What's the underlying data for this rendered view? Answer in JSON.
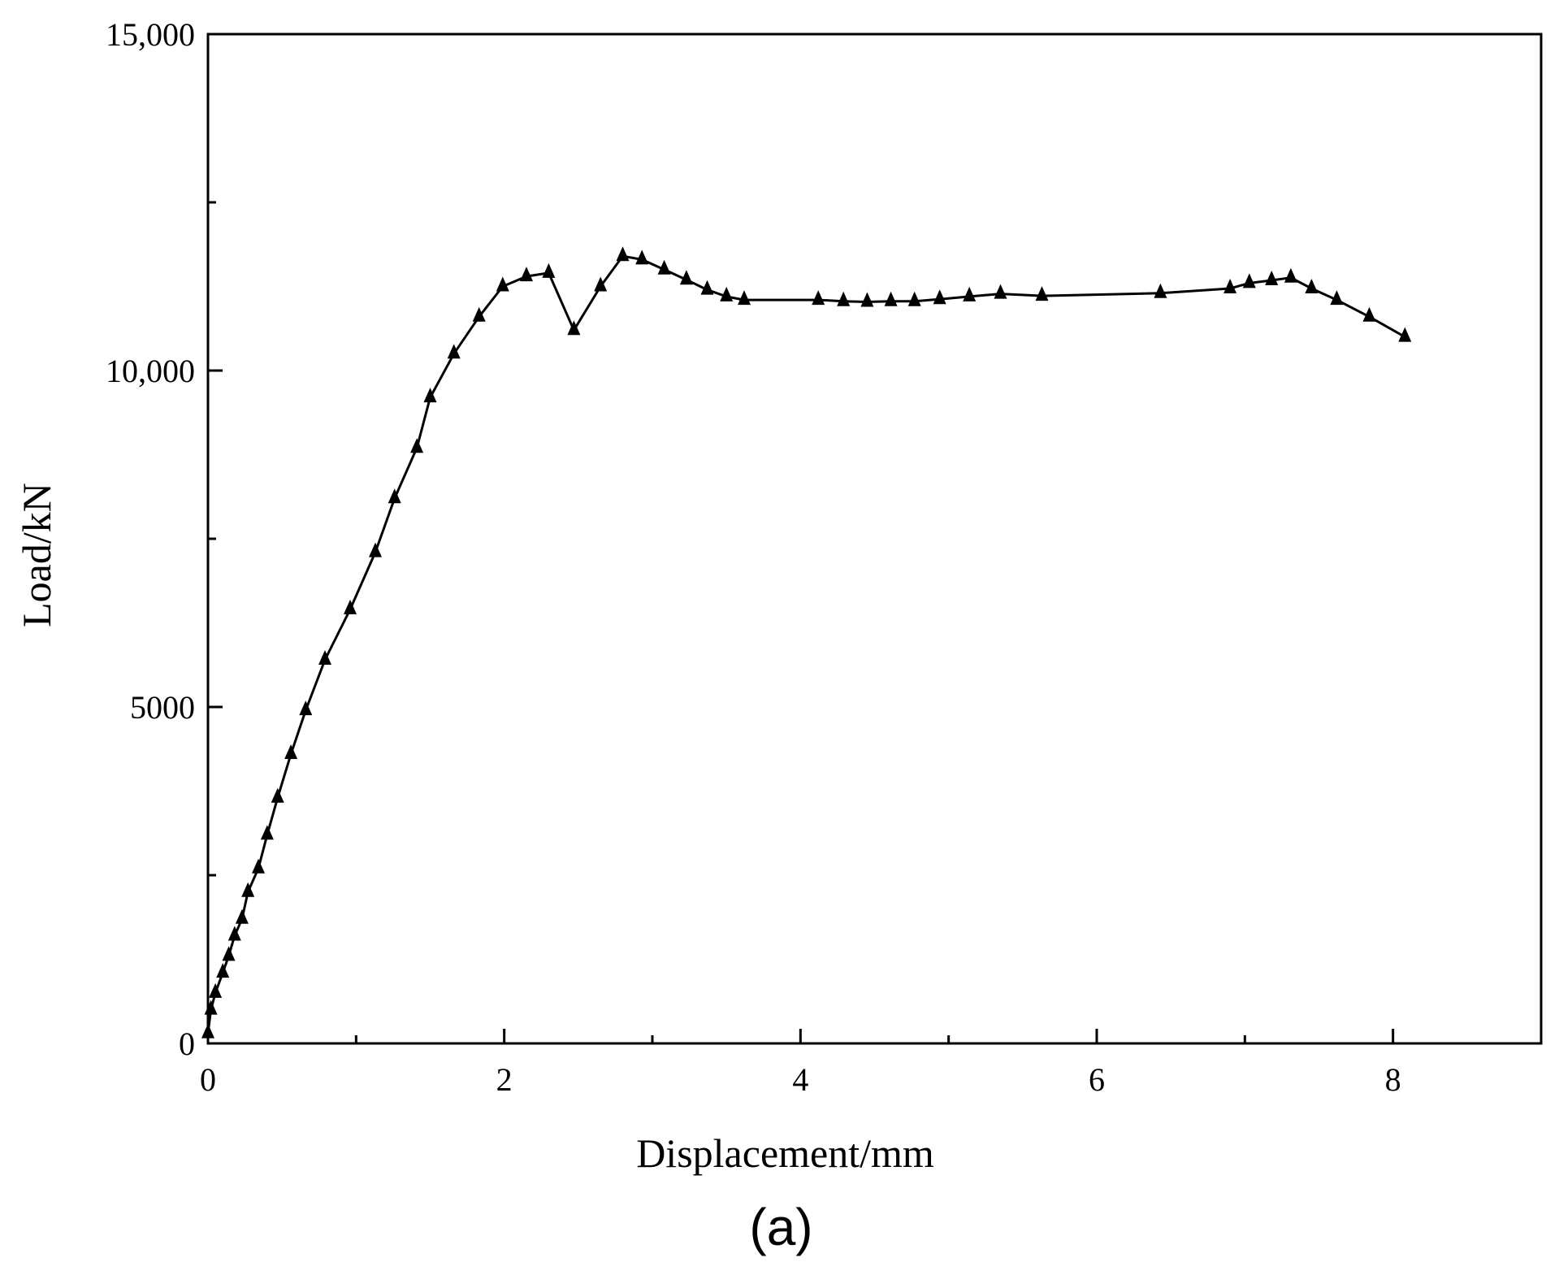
{
  "chart_data": {
    "type": "line",
    "xlabel": "Displacement/mm",
    "ylabel": "Load/kN",
    "xlim": [
      0,
      9
    ],
    "ylim": [
      0,
      15000
    ],
    "x_ticks": [
      {
        "value": 0,
        "label": "0"
      },
      {
        "value": 2,
        "label": "2"
      },
      {
        "value": 4,
        "label": "4"
      },
      {
        "value": 6,
        "label": "6"
      },
      {
        "value": 8,
        "label": "8"
      }
    ],
    "x_minor_ticks": [
      1,
      3,
      5,
      7,
      9
    ],
    "y_ticks": [
      {
        "value": 0,
        "label": "0"
      },
      {
        "value": 5000,
        "label": "5000"
      },
      {
        "value": 10000,
        "label": "10,000"
      },
      {
        "value": 15000,
        "label": "15,000"
      }
    ],
    "y_minor_ticks": [
      2500,
      7500,
      12500
    ],
    "grid": false,
    "legend": "none",
    "marker": "triangle",
    "line_color": "#000000",
    "panel_label": "(a)",
    "series": [
      {
        "x": [
          0.0,
          0.02,
          0.05,
          0.1,
          0.14,
          0.18,
          0.23,
          0.27,
          0.34,
          0.4,
          0.47,
          0.56,
          0.66,
          0.79,
          0.96,
          1.13,
          1.26,
          1.41,
          1.5,
          1.66,
          1.83,
          1.99,
          2.15,
          2.3,
          2.47,
          2.65,
          2.8,
          2.93,
          3.08,
          3.23,
          3.37,
          3.5,
          3.62,
          4.12,
          4.29,
          4.45,
          4.61,
          4.77,
          4.94,
          5.14,
          5.35,
          5.63,
          6.43,
          6.9,
          7.03,
          7.18,
          7.31,
          7.45,
          7.62,
          7.84,
          8.08
        ],
        "y": [
          150,
          500,
          750,
          1050,
          1300,
          1600,
          1850,
          2250,
          2600,
          3100,
          3650,
          4300,
          4950,
          5700,
          6450,
          7300,
          8100,
          8850,
          9600,
          10250,
          10800,
          11250,
          11400,
          11450,
          10600,
          11250,
          11700,
          11650,
          11500,
          11350,
          11200,
          11100,
          11050,
          11050,
          11030,
          11020,
          11030,
          11030,
          11060,
          11100,
          11140,
          11110,
          11150,
          11220,
          11300,
          11340,
          11380,
          11220,
          11050,
          10800,
          10500
        ]
      }
    ]
  }
}
